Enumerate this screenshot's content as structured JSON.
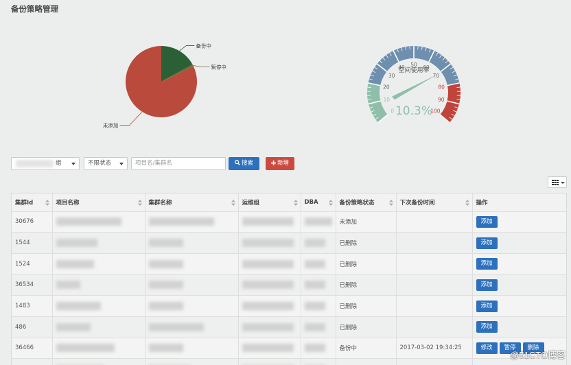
{
  "page": {
    "title": "备份策略管理"
  },
  "colors": {
    "pie_backing": "#b94a3c",
    "pie_stopped": "#7a6a2e",
    "pie_inprogress": "#2b5f36",
    "gauge_low": "#8fbfaa",
    "gauge_mid": "#6f8fae",
    "gauge_high": "#c0443c",
    "primary": "#2d70bd",
    "danger": "#cb4a3f"
  },
  "chart_data": [
    {
      "type": "pie",
      "slices": [
        {
          "name": "未添加",
          "value": 82
        },
        {
          "name": "备份中",
          "value": 17
        },
        {
          "name": "暂停中",
          "value": 1
        }
      ],
      "labels": [
        "备份中",
        "暂停中",
        "未添加"
      ]
    },
    {
      "type": "gauge",
      "title": "空间使用率",
      "value_label": "10.3%",
      "value": 10.3,
      "range": [
        0,
        100
      ],
      "ticks": [
        "0",
        "10",
        "20",
        "30",
        "40",
        "50",
        "60",
        "70",
        "80",
        "90",
        "100"
      ],
      "bands": [
        {
          "from": 0,
          "to": 20,
          "level": "low"
        },
        {
          "from": 20,
          "to": 80,
          "level": "mid"
        },
        {
          "from": 80,
          "to": 100,
          "level": "high"
        }
      ]
    }
  ],
  "toolbar": {
    "group_select_suffix": "组",
    "status_select": "不限状态",
    "search_placeholder": "项目名/集群名",
    "search_label": "搜索",
    "add_label": "新增"
  },
  "table": {
    "headers": [
      "集群Id",
      "项目名称",
      "集群名称",
      "运维组",
      "DBA",
      "备份策略状态",
      "下次备份时间",
      "操作"
    ],
    "rows": [
      {
        "id": "30676",
        "status": "未添加",
        "next": "",
        "ops": [
          "添加"
        ]
      },
      {
        "id": "1544",
        "status": "已删除",
        "next": "",
        "ops": [
          "添加"
        ]
      },
      {
        "id": "1524",
        "status": "已删除",
        "next": "",
        "ops": [
          "添加"
        ]
      },
      {
        "id": "36534",
        "status": "已删除",
        "next": "",
        "ops": [
          "添加"
        ]
      },
      {
        "id": "1483",
        "status": "已删除",
        "next": "",
        "ops": [
          "添加"
        ]
      },
      {
        "id": "486",
        "status": "已删除",
        "next": "",
        "ops": [
          "添加"
        ]
      },
      {
        "id": "36466",
        "status": "备份中",
        "next": "2017-03-02 19:34:25",
        "ops": [
          "修改",
          "暂停",
          "删除"
        ]
      },
      {
        "id": "",
        "status": "",
        "next": "",
        "ops": []
      }
    ]
  },
  "watermark": "@51CTO博客"
}
